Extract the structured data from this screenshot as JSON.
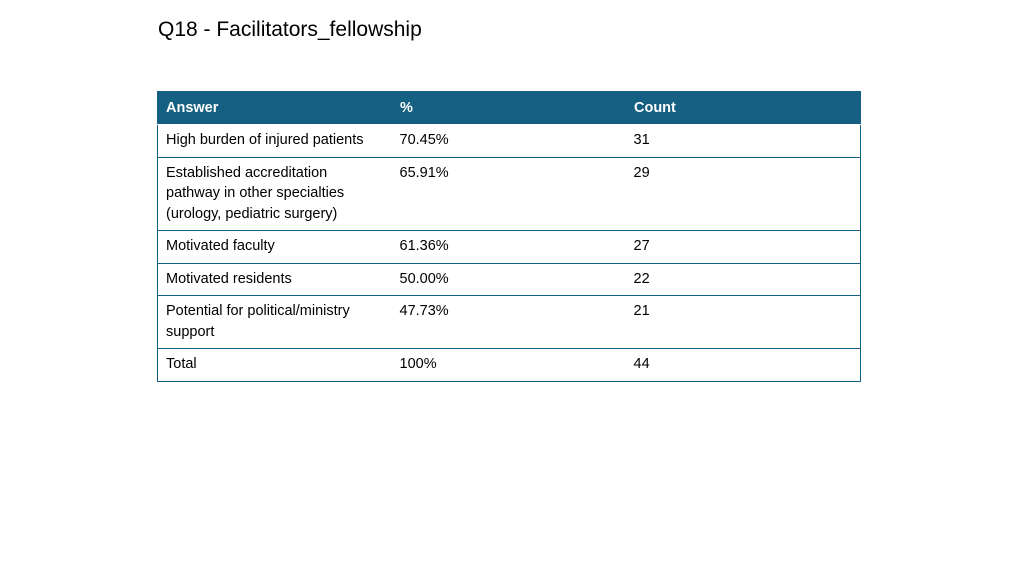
{
  "title": "Q18 - Facilitators_fellowship",
  "table": {
    "headers": [
      "Answer",
      "%",
      "Count"
    ],
    "rows": [
      {
        "answer": "High burden of injured patients",
        "percent": "70.45%",
        "count": "31"
      },
      {
        "answer": "Established accreditation pathway in other specialties (urology, pediatric surgery)",
        "percent": "65.91%",
        "count": "29"
      },
      {
        "answer": "Motivated faculty",
        "percent": "61.36%",
        "count": "27"
      },
      {
        "answer": "Motivated residents",
        "percent": "50.00%",
        "count": "22"
      },
      {
        "answer": "Potential for political/ministry support",
        "percent": "47.73%",
        "count": "21"
      },
      {
        "answer": "Total",
        "percent": "100%",
        "count": "44"
      }
    ]
  },
  "colors": {
    "header_bg": "#156082",
    "header_text": "#ffffff",
    "border": "#156082"
  }
}
